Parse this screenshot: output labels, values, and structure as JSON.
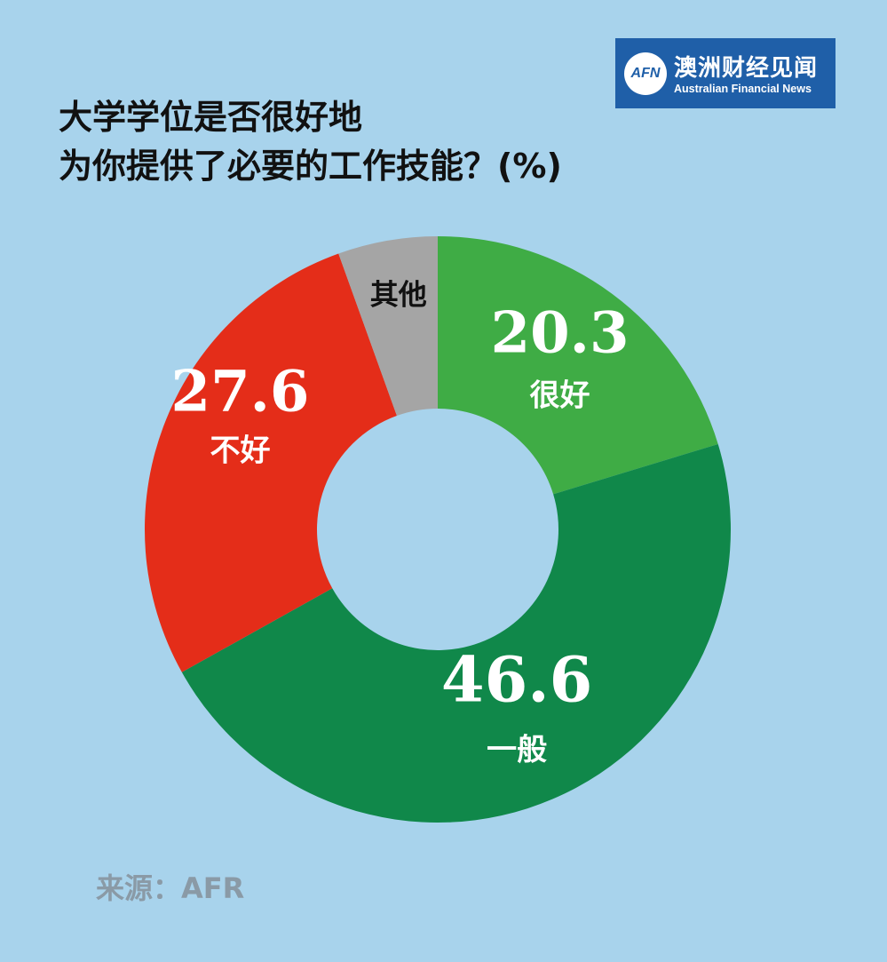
{
  "brand": {
    "mark": "AFN",
    "name_cn": "澳洲财经见闻",
    "name_en": "Australian Financial News",
    "color": "#1f5fa8"
  },
  "title": {
    "line1": "大学学位是否很好地",
    "line2": "为你提供了必要的工作技能？(%)"
  },
  "source": "来源：AFR",
  "chart_data": {
    "type": "pie",
    "subtype": "donut",
    "title": "大学学位是否很好地为你提供了必要的工作技能？(%)",
    "slices": [
      {
        "label": "很好",
        "value": 20.3,
        "value_label": "20.3",
        "color": "#3fac45"
      },
      {
        "label": "一般",
        "value": 46.6,
        "value_label": "46.6",
        "color": "#10884a"
      },
      {
        "label": "不好",
        "value": 27.6,
        "value_label": "27.6",
        "color": "#e42d19"
      },
      {
        "label": "其他",
        "value": 5.5,
        "value_label": "",
        "color": "#a5a5a5"
      }
    ],
    "start": "top",
    "direction": "clockwise",
    "legend": "none"
  }
}
